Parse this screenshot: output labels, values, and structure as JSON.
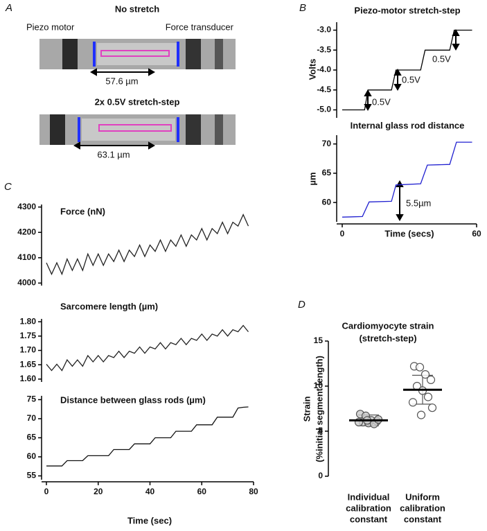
{
  "panels": [
    "A",
    "B",
    "C",
    "D"
  ],
  "panel_a": {
    "top_title": "No stretch",
    "left_label": "Piezo motor",
    "right_label": "Force transducer",
    "top_length": "57.6 µm",
    "bottom_title": "2x 0.5V stretch-step",
    "bottom_length": "63.1 µm"
  },
  "chart_data": [
    {
      "type": "line",
      "title": "Piezo-motor stretch-step",
      "ylabel": "Volts",
      "color": "#000000",
      "x": [
        0,
        10,
        11.5,
        22,
        24,
        35,
        37,
        48,
        50,
        58
      ],
      "values": [
        -5,
        -5,
        -4.5,
        -4.5,
        -4,
        -4,
        -3.5,
        -3.5,
        -3,
        -3
      ],
      "xlim": [
        0,
        60
      ],
      "ylim": [
        -5.2,
        -2.8
      ],
      "yticks": [
        {
          "value": -5,
          "label": "-5.0"
        },
        -4.5,
        {
          "value": -4,
          "label": "-4.0"
        },
        -3.5,
        {
          "value": -3,
          "label": "-3.0"
        }
      ],
      "annotations": [
        "0.5V",
        "0.5V",
        "0.5V"
      ]
    },
    {
      "type": "line",
      "title": "Internal glass rod distance",
      "ylabel": "µm",
      "xlabel": "Time (secs)",
      "color": "#1f1fd0",
      "x": [
        0,
        9,
        12,
        22,
        24,
        35,
        38,
        48,
        51,
        58
      ],
      "values": [
        57.5,
        57.6,
        60.1,
        60.2,
        63.0,
        63.2,
        66.4,
        66.5,
        70.3,
        70.3
      ],
      "xlim": [
        0,
        60
      ],
      "ylim": [
        56.7,
        71.5
      ],
      "xticks": [
        0,
        60
      ],
      "yticks": [
        60,
        65,
        70
      ],
      "annotations": [
        "5.5µm"
      ]
    },
    {
      "type": "line",
      "title": "Force (nN)",
      "color": "#222222",
      "x": [
        0,
        2,
        4,
        6,
        8,
        10,
        12,
        14,
        16,
        18,
        20,
        22,
        24,
        26,
        28,
        30,
        32,
        34,
        36,
        38,
        40,
        42,
        44,
        46,
        48,
        50,
        52,
        54,
        56,
        58,
        60,
        62,
        64,
        66,
        68,
        70,
        72,
        74,
        76,
        78
      ],
      "values": [
        4080,
        4035,
        4080,
        4035,
        4095,
        4050,
        4095,
        4050,
        4115,
        4070,
        4115,
        4070,
        4115,
        4085,
        4130,
        4085,
        4130,
        4105,
        4150,
        4105,
        4150,
        4125,
        4170,
        4125,
        4170,
        4145,
        4190,
        4145,
        4190,
        4170,
        4215,
        4170,
        4215,
        4195,
        4240,
        4195,
        4240,
        4225,
        4270,
        4225
      ],
      "xlim": [
        0,
        80
      ],
      "ylim": [
        3990,
        4310
      ],
      "yticks": [
        4000,
        4100,
        4200,
        4300
      ]
    },
    {
      "type": "line",
      "title": "Sarcomere length (µm)",
      "color": "#222222",
      "x": [
        0,
        2,
        4,
        6,
        8,
        10,
        12,
        14,
        16,
        18,
        20,
        22,
        24,
        26,
        28,
        30,
        32,
        34,
        36,
        38,
        40,
        42,
        44,
        46,
        48,
        50,
        52,
        54,
        56,
        58,
        60,
        62,
        64,
        66,
        68,
        70,
        72,
        74,
        76,
        78
      ],
      "values": [
        1.652,
        1.63,
        1.652,
        1.63,
        1.667,
        1.645,
        1.667,
        1.645,
        1.682,
        1.66,
        1.682,
        1.66,
        1.682,
        1.675,
        1.697,
        1.675,
        1.697,
        1.69,
        1.712,
        1.69,
        1.712,
        1.705,
        1.727,
        1.705,
        1.727,
        1.72,
        1.742,
        1.72,
        1.742,
        1.735,
        1.757,
        1.735,
        1.757,
        1.75,
        1.772,
        1.75,
        1.772,
        1.765,
        1.787,
        1.765
      ],
      "xlim": [
        0,
        80
      ],
      "ylim": [
        1.59,
        1.81
      ],
      "yticks": [
        {
          "value": 1.6,
          "label": "1.60"
        },
        1.65,
        {
          "value": 1.7,
          "label": "1.70"
        },
        1.75,
        {
          "value": 1.8,
          "label": "1.80"
        }
      ]
    },
    {
      "type": "line",
      "title": "Distance between glass rods (µm)",
      "xlabel": "Time (sec)",
      "color": "#111111",
      "x": [
        0,
        2,
        4,
        6,
        8,
        10,
        12,
        14,
        16,
        18,
        20,
        22,
        24,
        26,
        28,
        30,
        32,
        34,
        36,
        38,
        40,
        42,
        44,
        46,
        48,
        50,
        52,
        54,
        56,
        58,
        60,
        62,
        64,
        66,
        68,
        70,
        72,
        74,
        76,
        78
      ],
      "values": [
        57.6,
        57.6,
        57.6,
        57.6,
        59.0,
        59.0,
        59.0,
        59.0,
        60.3,
        60.3,
        60.3,
        60.3,
        60.3,
        61.9,
        61.9,
        61.9,
        61.9,
        63.4,
        63.4,
        63.4,
        63.4,
        65.0,
        65.0,
        65.0,
        65.0,
        66.7,
        66.7,
        66.7,
        66.7,
        68.4,
        68.4,
        68.4,
        68.4,
        70.4,
        70.4,
        70.4,
        70.4,
        72.8,
        73.0,
        73.1
      ],
      "xlim": [
        0,
        80
      ],
      "ylim": [
        54,
        76
      ],
      "xticks": [
        0,
        20,
        40,
        60,
        80
      ],
      "yticks": [
        55,
        60,
        65,
        70,
        75
      ]
    },
    {
      "type": "dot",
      "title": "Cardiomyocyte strain",
      "subtitle": "(stretch-step)",
      "ylabel": [
        "Strain",
        "(%initial segment length)"
      ],
      "categories": [
        [
          "Individual",
          "calibration",
          "constant"
        ],
        [
          "Uniform",
          "calibration",
          "constant"
        ]
      ],
      "groups": [
        {
          "values": [
            6.9,
            6.7,
            6.2,
            6.1,
            6.0,
            5.9,
            5.8,
            6.0,
            6.3,
            6.2
          ],
          "mean": 6.2,
          "sd": 0.6
        },
        {
          "values": [
            12.2,
            12.1,
            11.3,
            10.7,
            10.0,
            9.5,
            8.8,
            8.2,
            7.6,
            6.8
          ],
          "mean": 9.6,
          "sd": 1.6
        }
      ],
      "ylim": [
        0,
        15
      ],
      "yticks": [
        0,
        5,
        10,
        15
      ]
    }
  ]
}
